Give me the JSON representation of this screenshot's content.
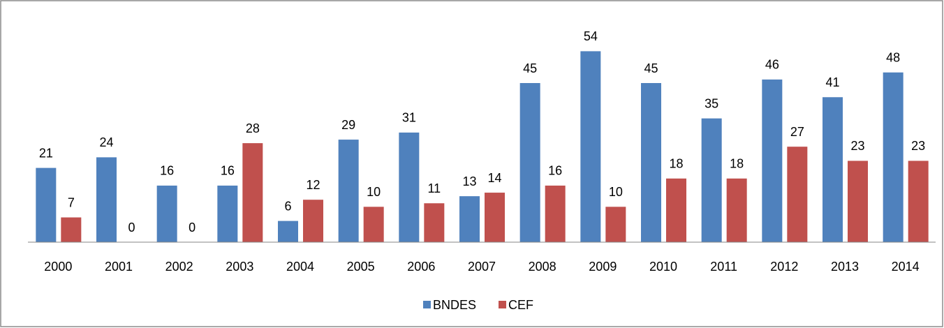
{
  "chart_data": {
    "type": "bar",
    "categories": [
      "2000",
      "2001",
      "2002",
      "2003",
      "2004",
      "2005",
      "2006",
      "2007",
      "2008",
      "2009",
      "2010",
      "2011",
      "2012",
      "2013",
      "2014"
    ],
    "series": [
      {
        "name": "BNDES",
        "color": "#4f81bd",
        "values": [
          21,
          24,
          16,
          16,
          6,
          29,
          31,
          13,
          45,
          54,
          45,
          35,
          46,
          41,
          48
        ]
      },
      {
        "name": "CEF",
        "color": "#c0504d",
        "values": [
          7,
          0,
          0,
          28,
          12,
          10,
          11,
          14,
          16,
          10,
          18,
          18,
          27,
          23,
          23
        ]
      }
    ],
    "ylim": [
      0,
      60
    ]
  }
}
